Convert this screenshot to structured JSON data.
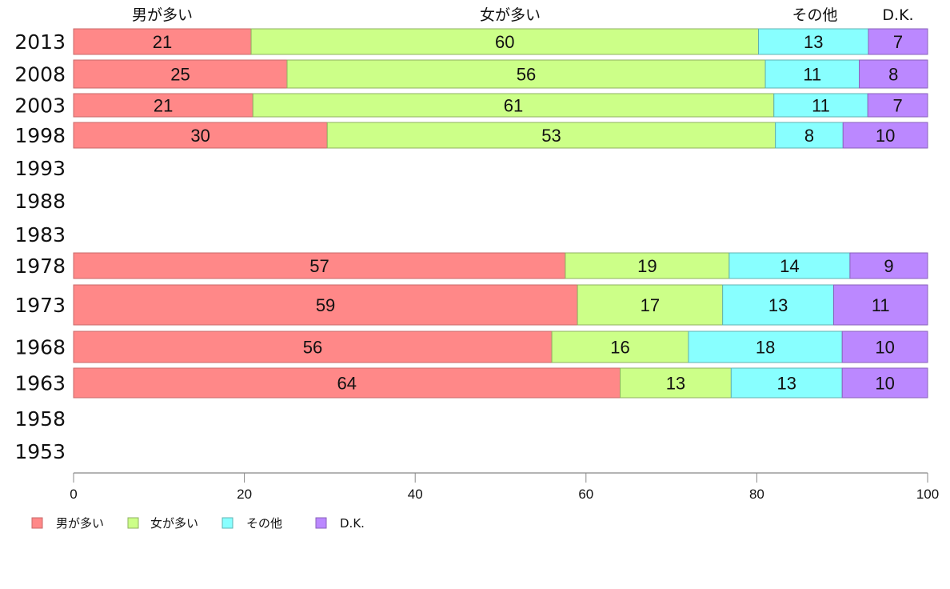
{
  "chart_data": {
    "type": "bar",
    "orientation": "horizontal",
    "stacked": true,
    "normalized": true,
    "categories": [
      "2013",
      "2008",
      "2003",
      "1998",
      "1993",
      "1988",
      "1983",
      "1978",
      "1973",
      "1968",
      "1963",
      "1958",
      "1953"
    ],
    "series": [
      {
        "name": "男が多い",
        "color": "#ff8888",
        "stroke": "#c86a6a",
        "values": [
          21,
          25,
          21,
          30,
          null,
          null,
          null,
          57,
          59,
          56,
          64,
          null,
          null
        ]
      },
      {
        "name": "女が多い",
        "color": "#ccff88",
        "stroke": "#8fb060",
        "values": [
          60,
          56,
          61,
          53,
          null,
          null,
          null,
          19,
          17,
          16,
          13,
          null,
          null
        ]
      },
      {
        "name": "その他",
        "color": "#88ffff",
        "stroke": "#5fb3b3",
        "values": [
          13,
          11,
          11,
          8,
          null,
          null,
          null,
          14,
          13,
          18,
          13,
          null,
          null
        ]
      },
      {
        "name": "D.K.",
        "color": "#bb88ff",
        "stroke": "#8a62bb",
        "values": [
          7,
          8,
          7,
          10,
          null,
          null,
          null,
          9,
          11,
          10,
          10,
          null,
          null
        ]
      }
    ],
    "top_labels": [
      "男が多い",
      "女が多い",
      "その他",
      "D.K."
    ],
    "xlim": [
      0,
      100
    ],
    "xticks": [
      0,
      20,
      40,
      60,
      80,
      100
    ],
    "xlabel": "",
    "ylabel": "",
    "grid": false,
    "legend_position": "bottom-left"
  }
}
